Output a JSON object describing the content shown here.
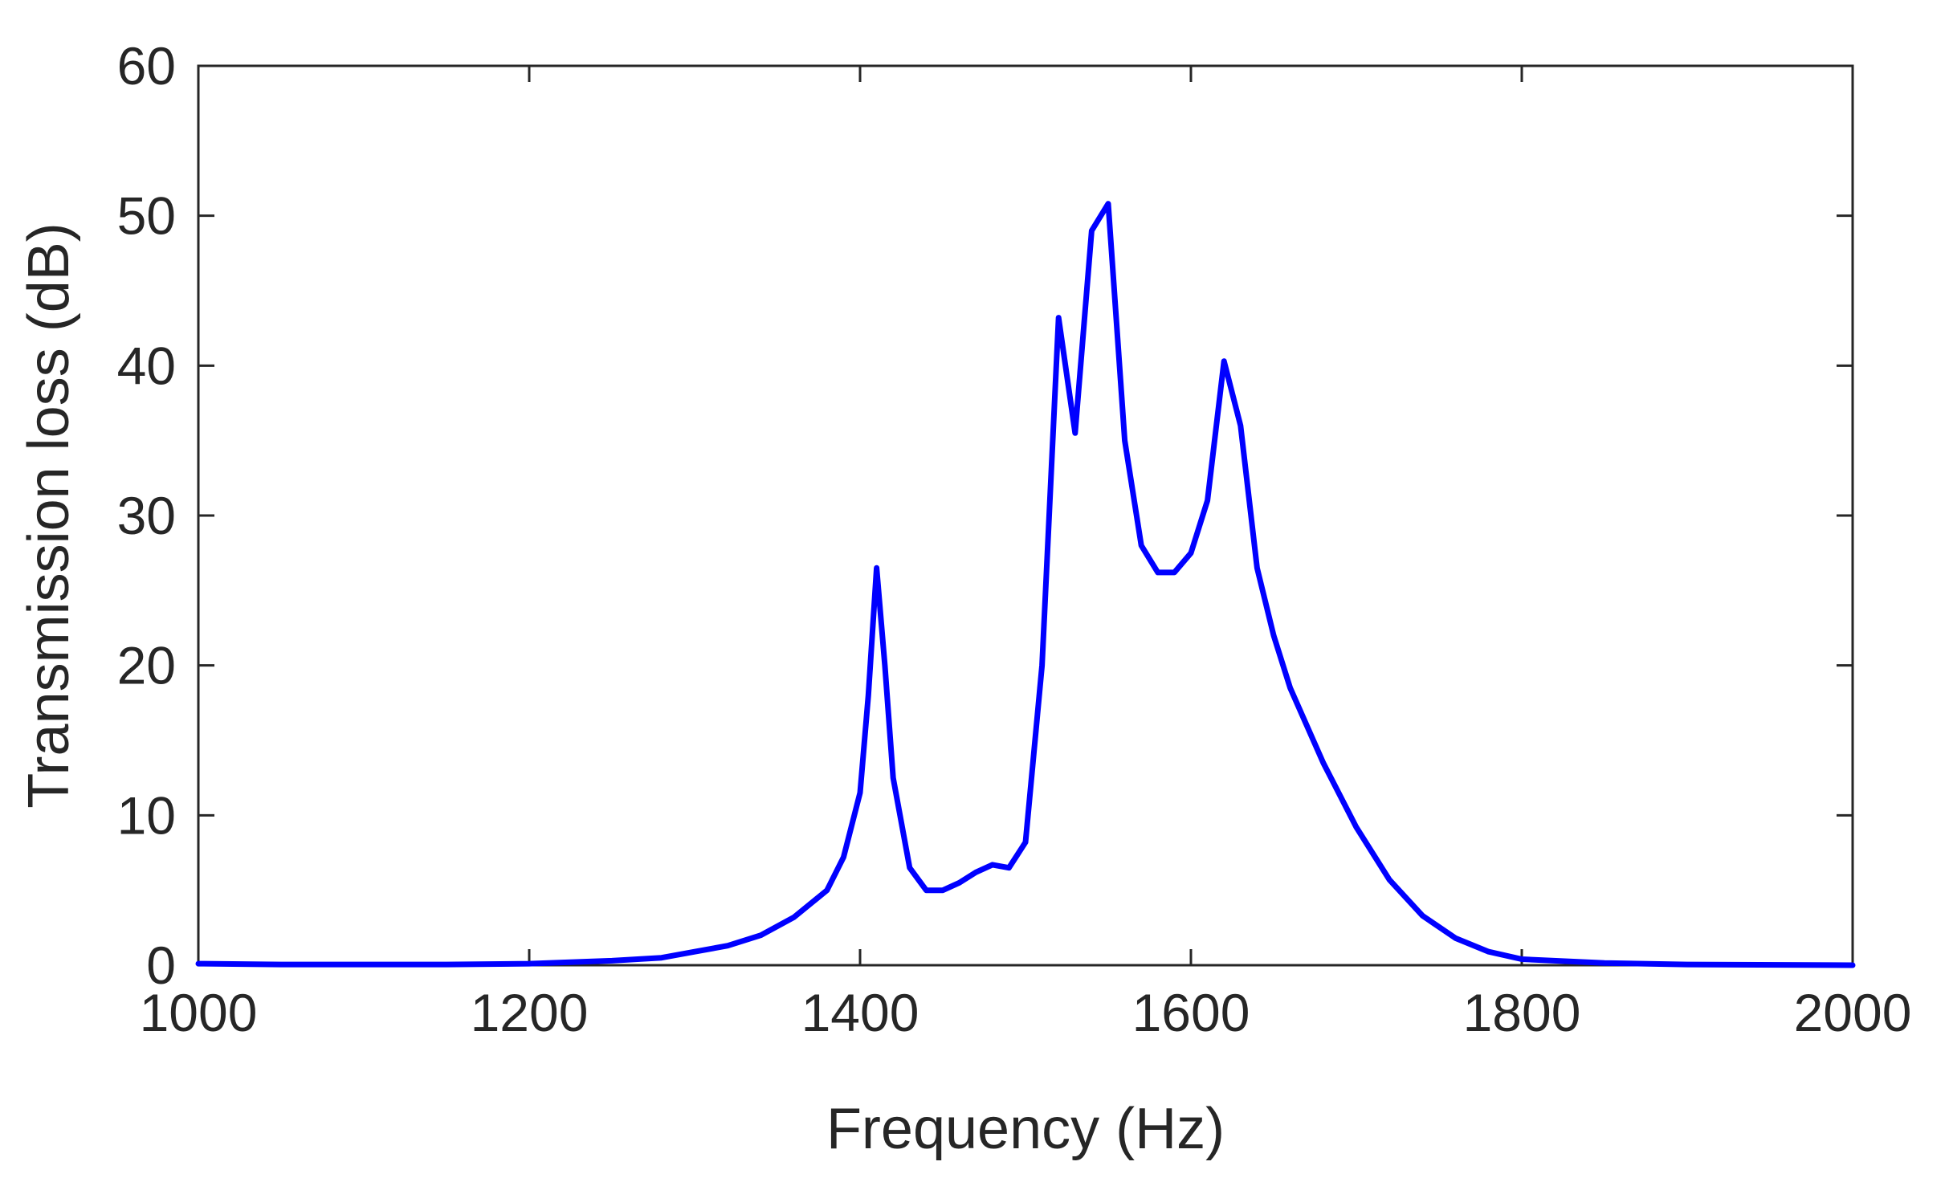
{
  "chart_data": {
    "type": "line",
    "title": "",
    "xlabel": "Frequency (Hz)",
    "ylabel": "Transmission loss (dB)",
    "xlim": [
      1000,
      2000
    ],
    "ylim": [
      0,
      60
    ],
    "xticks": [
      1000,
      1200,
      1400,
      1600,
      1800,
      2000
    ],
    "yticks": [
      0,
      10,
      20,
      30,
      40,
      50,
      60
    ],
    "grid": false,
    "legend": "none",
    "line_color": "#0000ff",
    "series": [
      {
        "color": "#0000ff",
        "points": [
          [
            1000,
            0.1
          ],
          [
            1050,
            0.05
          ],
          [
            1100,
            0.05
          ],
          [
            1150,
            0.05
          ],
          [
            1200,
            0.1
          ],
          [
            1250,
            0.3
          ],
          [
            1280,
            0.5
          ],
          [
            1300,
            0.9
          ],
          [
            1320,
            1.3
          ],
          [
            1340,
            2.0
          ],
          [
            1360,
            3.2
          ],
          [
            1380,
            5.0
          ],
          [
            1390,
            7.2
          ],
          [
            1400,
            11.5
          ],
          [
            1405,
            18.0
          ],
          [
            1410,
            26.5
          ],
          [
            1415,
            20.0
          ],
          [
            1420,
            12.5
          ],
          [
            1430,
            6.5
          ],
          [
            1440,
            5.0
          ],
          [
            1450,
            5.0
          ],
          [
            1460,
            5.5
          ],
          [
            1470,
            6.2
          ],
          [
            1480,
            6.7
          ],
          [
            1490,
            6.5
          ],
          [
            1500,
            8.2
          ],
          [
            1510,
            20.0
          ],
          [
            1520,
            43.2
          ],
          [
            1530,
            35.5
          ],
          [
            1540,
            49.0
          ],
          [
            1550,
            50.8
          ],
          [
            1560,
            35.0
          ],
          [
            1570,
            28.0
          ],
          [
            1580,
            26.2
          ],
          [
            1590,
            26.2
          ],
          [
            1600,
            27.5
          ],
          [
            1610,
            31.0
          ],
          [
            1620,
            40.3
          ],
          [
            1630,
            36.0
          ],
          [
            1640,
            26.5
          ],
          [
            1650,
            22.0
          ],
          [
            1660,
            18.5
          ],
          [
            1680,
            13.5
          ],
          [
            1700,
            9.2
          ],
          [
            1720,
            5.7
          ],
          [
            1740,
            3.3
          ],
          [
            1760,
            1.8
          ],
          [
            1780,
            0.9
          ],
          [
            1800,
            0.4
          ],
          [
            1850,
            0.15
          ],
          [
            1900,
            0.05
          ],
          [
            2000,
            0.0
          ]
        ]
      }
    ]
  }
}
